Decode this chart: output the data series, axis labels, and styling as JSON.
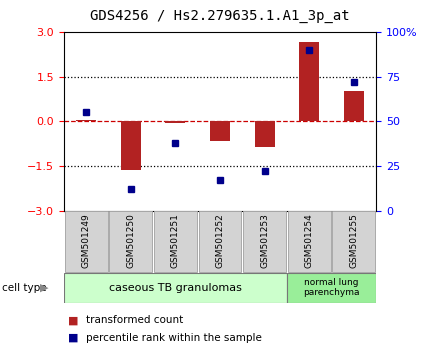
{
  "title": "GDS4256 / Hs2.279635.1.A1_3p_at",
  "samples": [
    "GSM501249",
    "GSM501250",
    "GSM501251",
    "GSM501252",
    "GSM501253",
    "GSM501254",
    "GSM501255"
  ],
  "transformed_count": [
    0.05,
    -1.65,
    -0.05,
    -0.65,
    -0.85,
    2.65,
    1.0
  ],
  "percentile_rank": [
    55,
    12,
    38,
    17,
    22,
    90,
    72
  ],
  "ylim_left": [
    -3,
    3
  ],
  "ylim_right": [
    0,
    100
  ],
  "yticks_left": [
    -3,
    -1.5,
    0,
    1.5,
    3
  ],
  "yticks_right": [
    0,
    25,
    50,
    75,
    100
  ],
  "ytick_labels_right": [
    "0",
    "25",
    "50",
    "75",
    "100%"
  ],
  "bar_color": "#b22222",
  "scatter_color": "#00008b",
  "zero_line_color": "#cc0000",
  "dotted_line_color": "#000000",
  "group1_count": 5,
  "group1_label": "caseous TB granulomas",
  "group2_label": "normal lung\nparenchyma",
  "group1_color": "#ccffcc",
  "group2_color": "#99ee99",
  "cell_type_label": "cell type",
  "legend_bar_label": "transformed count",
  "legend_scatter_label": "percentile rank within the sample",
  "background_color": "#ffffff",
  "title_fontsize": 10,
  "tick_fontsize": 8,
  "sample_label_fontsize": 6.5
}
